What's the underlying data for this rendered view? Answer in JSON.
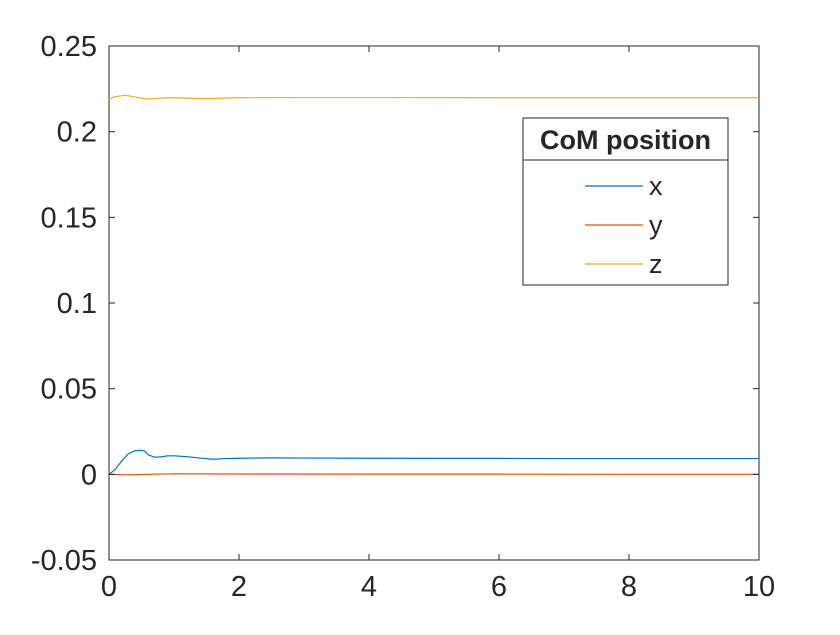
{
  "chart_data": {
    "type": "line",
    "title": "",
    "xlabel": "",
    "ylabel": "",
    "xlim": [
      0,
      10
    ],
    "ylim": [
      -0.05,
      0.25
    ],
    "xticks": [
      0,
      2,
      4,
      6,
      8,
      10
    ],
    "yticks": [
      -0.05,
      0,
      0.05,
      0.1,
      0.15,
      0.2,
      0.25
    ],
    "xtick_labels": [
      "0",
      "2",
      "4",
      "6",
      "8",
      "10"
    ],
    "ytick_labels": [
      "-0.05",
      "0",
      "0.05",
      "0.1",
      "0.15",
      "0.2",
      "0.25"
    ],
    "grid": false,
    "legend": {
      "title": "CoM position",
      "placement": "top-right"
    },
    "series": [
      {
        "name": "x",
        "color": "#0072BD",
        "x": [
          0,
          0.1,
          0.2,
          0.3,
          0.4,
          0.5,
          0.55,
          0.6,
          0.7,
          0.8,
          0.9,
          1.0,
          1.2,
          1.4,
          1.6,
          1.8,
          2.0,
          2.5,
          3.0,
          4.0,
          5.0,
          6.0,
          7.0,
          8.0,
          9.0,
          10.0
        ],
        "y": [
          0,
          0.003,
          0.008,
          0.012,
          0.0138,
          0.014,
          0.0135,
          0.0115,
          0.01,
          0.0102,
          0.0108,
          0.0108,
          0.0103,
          0.0095,
          0.0088,
          0.0092,
          0.0094,
          0.0096,
          0.0095,
          0.0094,
          0.0093,
          0.0093,
          0.0092,
          0.0092,
          0.0092,
          0.0092
        ]
      },
      {
        "name": "y",
        "color": "#D95319",
        "x": [
          0,
          0.3,
          0.6,
          1.0,
          2.0,
          4.0,
          6.0,
          8.0,
          10.0
        ],
        "y": [
          0,
          -0.0003,
          0,
          0.0003,
          0.0002,
          0.0001,
          0.0001,
          0.0,
          0.0
        ]
      },
      {
        "name": "z",
        "color": "#EDB120",
        "x": [
          0,
          0.1,
          0.25,
          0.4,
          0.6,
          0.7,
          0.9,
          1.2,
          1.5,
          2.0,
          3.0,
          4.0,
          6.0,
          8.0,
          10.0
        ],
        "y": [
          0.219,
          0.2205,
          0.2212,
          0.2202,
          0.219,
          0.2193,
          0.2198,
          0.2196,
          0.2193,
          0.2198,
          0.2199,
          0.2199,
          0.2198,
          0.2198,
          0.2198
        ]
      }
    ]
  }
}
